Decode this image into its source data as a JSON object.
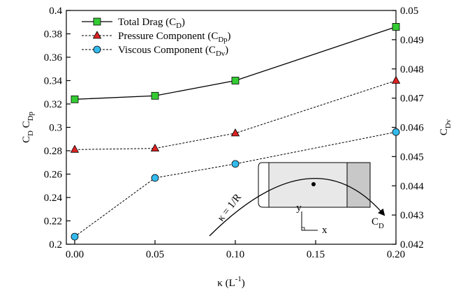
{
  "chart_data": {
    "type": "line",
    "xlabel": "κ (L-1)",
    "ylabel": "CD CDp",
    "y2label": "CDv",
    "xlim": [
      -0.0052,
      0.2
    ],
    "xticks": [
      {
        "value": 0,
        "label": "0.00"
      },
      {
        "value": 0.05,
        "label": "0.05"
      },
      {
        "value": 0.1,
        "label": "0.10"
      },
      {
        "value": 0.15,
        "label": "0.15"
      },
      {
        "value": 0.2,
        "label": "0.20"
      }
    ],
    "ylim": [
      0.2,
      0.4
    ],
    "yticks": [
      0.2,
      0.22,
      0.24,
      0.26,
      0.28,
      0.3,
      0.32,
      0.34,
      0.36,
      0.38,
      0.4
    ],
    "y2lim": [
      0.042,
      0.05
    ],
    "y2ticks": [
      0.042,
      0.043,
      0.044,
      0.045,
      0.046,
      0.047,
      0.048,
      0.049,
      0.05
    ],
    "x": [
      0,
      0.05,
      0.1,
      0.2
    ],
    "legend": "upper left",
    "series": [
      {
        "name": "Total Drag (CD)",
        "color": "#33cc33",
        "marker": "square",
        "dash": "solid",
        "values": [
          0.324,
          0.327,
          0.34,
          0.386
        ]
      },
      {
        "name": "Pressure Component (CDp)",
        "color": "#dd2222",
        "marker": "triangle",
        "dash": "dotted",
        "values": [
          0.281,
          0.282,
          0.295,
          0.34
        ]
      },
      {
        "name": "Viscous Component (CDv)",
        "color": "#33bbee",
        "marker": "circle",
        "dash": "dotted",
        "axis": "y2",
        "values": [
          0.04226,
          0.04427,
          0.04475,
          0.04584
        ]
      }
    ],
    "annotations": {
      "curvature": "κ = 1/R",
      "axis_y": "y",
      "axis_x": "x",
      "drag": "CD"
    }
  }
}
